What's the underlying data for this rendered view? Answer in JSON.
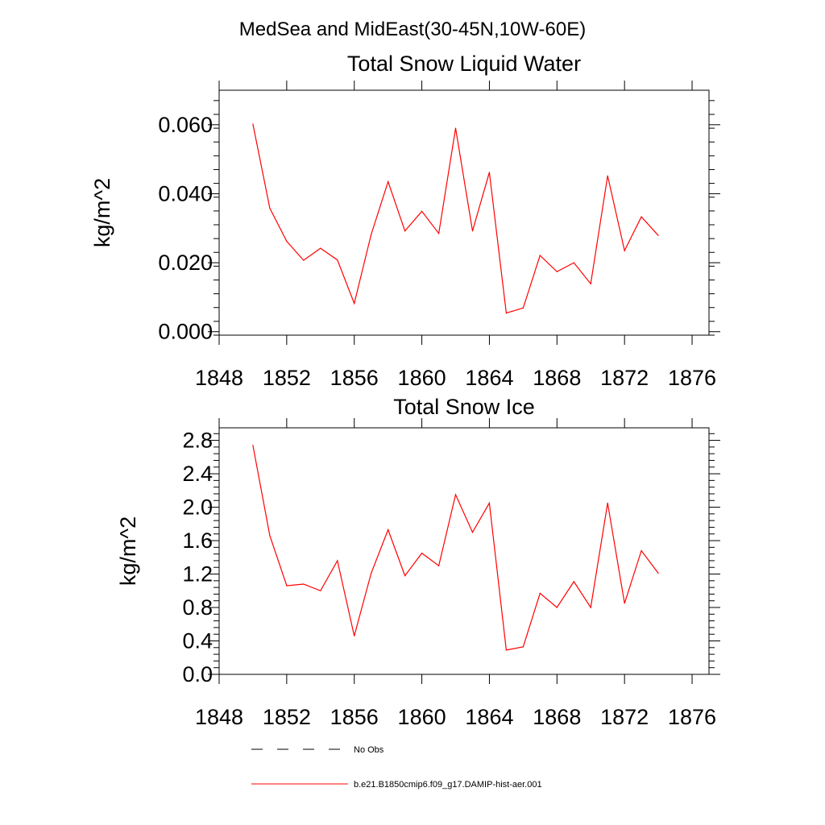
{
  "page_title": "MedSea and MidEast(30-45N,10W-60E)",
  "colors": {
    "series": "#ff0000",
    "axis": "#000000",
    "no_obs": "#000000"
  },
  "legend": {
    "placement": "bottom",
    "entries": [
      {
        "label": "No Obs",
        "style": "dashed",
        "color": "#000000"
      },
      {
        "label": "b.e21.B1850cmip6.f09_g17.DAMIP-hist-aer.001",
        "style": "solid",
        "color": "#ff0000"
      }
    ]
  },
  "chart_data": [
    {
      "type": "line",
      "title": "Total Snow Liquid Water",
      "xlabel": "",
      "ylabel": "kg/m^2",
      "xlim": [
        1848,
        1877
      ],
      "ylim": [
        -0.001,
        0.07
      ],
      "xticks": [
        1848,
        1852,
        1856,
        1860,
        1864,
        1868,
        1872,
        1876
      ],
      "xtick_labels": [
        "1848",
        "1852",
        "1856",
        "1860",
        "1864",
        "1868",
        "1872",
        "1876"
      ],
      "yticks": [
        0.0,
        0.02,
        0.04,
        0.06
      ],
      "ytick_labels": [
        "0.000",
        "0.020",
        "0.040",
        "0.060"
      ],
      "grid": false,
      "x": [
        1850,
        1851,
        1852,
        1853,
        1854,
        1855,
        1856,
        1857,
        1858,
        1859,
        1860,
        1861,
        1862,
        1863,
        1864,
        1865,
        1866,
        1867,
        1868,
        1869,
        1870,
        1871,
        1872,
        1873,
        1874
      ],
      "series": [
        {
          "values": [
            0.0602,
            0.0358,
            0.0262,
            0.0207,
            0.0242,
            0.0208,
            0.0082,
            0.0282,
            0.0435,
            0.0292,
            0.0349,
            0.0285,
            0.059,
            0.0292,
            0.0462,
            0.0054,
            0.0069,
            0.0221,
            0.0174,
            0.02,
            0.0139,
            0.0452,
            0.0235,
            0.0333,
            0.0279
          ]
        }
      ]
    },
    {
      "type": "line",
      "title": "Total Snow Ice",
      "xlabel": "",
      "ylabel": "kg/m^2",
      "xlim": [
        1848,
        1877
      ],
      "ylim": [
        0.0,
        2.95
      ],
      "xticks": [
        1848,
        1852,
        1856,
        1860,
        1864,
        1868,
        1872,
        1876
      ],
      "xtick_labels": [
        "1848",
        "1852",
        "1856",
        "1860",
        "1864",
        "1868",
        "1872",
        "1876"
      ],
      "yticks": [
        0.0,
        0.4,
        0.8,
        1.2,
        1.6,
        2.0,
        2.4,
        2.8
      ],
      "ytick_labels": [
        "0.0",
        "0.4",
        "0.8",
        "1.2",
        "1.6",
        "2.0",
        "2.4",
        "2.8"
      ],
      "grid": false,
      "x": [
        1850,
        1851,
        1852,
        1853,
        1854,
        1855,
        1856,
        1857,
        1858,
        1859,
        1860,
        1861,
        1862,
        1863,
        1864,
        1865,
        1866,
        1867,
        1868,
        1869,
        1870,
        1871,
        1872,
        1873,
        1874
      ],
      "series": [
        {
          "values": [
            2.74,
            1.66,
            1.06,
            1.08,
            1.0,
            1.36,
            0.46,
            1.21,
            1.73,
            1.18,
            1.45,
            1.3,
            2.15,
            1.7,
            2.05,
            0.29,
            0.33,
            0.97,
            0.8,
            1.11,
            0.8,
            2.05,
            0.85,
            1.48,
            1.21
          ]
        }
      ]
    }
  ]
}
